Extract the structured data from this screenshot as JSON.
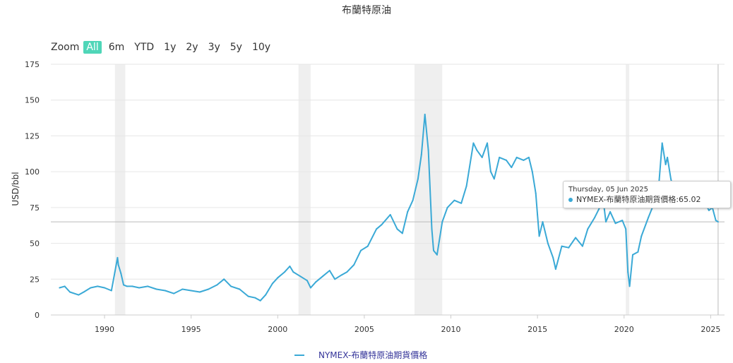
{
  "title": "布蘭特原油",
  "zoom": {
    "label": "Zoom",
    "buttons": [
      "All",
      "6m",
      "YTD",
      "1y",
      "2y",
      "3y",
      "5y",
      "10y"
    ],
    "active": "All"
  },
  "colors": {
    "series": "#3aa9d6",
    "recession": "#efefef",
    "zoom_active": "#4fd6b8",
    "grid": "#e6e6e6"
  },
  "tooltip": {
    "date": "Thursday, 05 Jun 2025",
    "series_label": "NYMEX-布蘭特原油期貨價格",
    "value": "65.02",
    "text": "NYMEX-布蘭特原油期貨價格:65.02"
  },
  "legend": {
    "label": "NYMEX-布蘭特原油期貨價格"
  },
  "chart_data": {
    "type": "line",
    "title": "布蘭特原油",
    "xlabel": "",
    "ylabel": "USD/bbl",
    "xlim": [
      1986.9,
      2025.8
    ],
    "ylim": [
      0,
      175
    ],
    "x_ticks": [
      1990,
      1995,
      2000,
      2005,
      2010,
      2015,
      2020,
      2025
    ],
    "y_ticks": [
      0,
      25,
      50,
      75,
      100,
      125,
      150,
      175
    ],
    "grid": true,
    "legend_position": "bottom-center",
    "recession_bands": [
      [
        1990.6,
        1991.2
      ],
      [
        2001.2,
        2001.9
      ],
      [
        2007.9,
        2009.5
      ],
      [
        2020.1,
        2020.3
      ]
    ],
    "crosshair": {
      "x": 2025.43,
      "y": 65.02
    },
    "series": [
      {
        "name": "NYMEX-布蘭特原油期貨價格",
        "x": [
          1987.4,
          1987.7,
          1988.0,
          1988.5,
          1988.8,
          1989.2,
          1989.6,
          1990.0,
          1990.4,
          1990.6,
          1990.75,
          1990.8,
          1990.95,
          1991.1,
          1991.3,
          1991.6,
          1992.0,
          1992.5,
          1993.0,
          1993.5,
          1994.0,
          1994.5,
          1995.0,
          1995.5,
          1996.0,
          1996.5,
          1996.9,
          1997.3,
          1997.8,
          1998.3,
          1998.7,
          1999.0,
          1999.3,
          1999.7,
          2000.0,
          2000.4,
          2000.7,
          2000.9,
          2001.3,
          2001.7,
          2001.9,
          2002.2,
          2002.6,
          2003.0,
          2003.3,
          2003.7,
          2004.0,
          2004.4,
          2004.8,
          2005.2,
          2005.7,
          2006.0,
          2006.5,
          2006.9,
          2007.2,
          2007.5,
          2007.8,
          2008.1,
          2008.3,
          2008.5,
          2008.7,
          2008.9,
          2009.0,
          2009.2,
          2009.5,
          2009.8,
          2010.2,
          2010.6,
          2010.9,
          2011.1,
          2011.3,
          2011.5,
          2011.8,
          2012.1,
          2012.3,
          2012.5,
          2012.8,
          2013.2,
          2013.5,
          2013.8,
          2014.2,
          2014.5,
          2014.7,
          2014.9,
          2015.0,
          2015.1,
          2015.3,
          2015.6,
          2015.9,
          2016.05,
          2016.4,
          2016.8,
          2017.2,
          2017.6,
          2017.9,
          2018.3,
          2018.8,
          2018.95,
          2019.2,
          2019.5,
          2019.9,
          2020.1,
          2020.22,
          2020.32,
          2020.5,
          2020.8,
          2021.0,
          2021.4,
          2021.8,
          2022.0,
          2022.2,
          2022.4,
          2022.5,
          2022.7,
          2022.9,
          2023.2,
          2023.5,
          2023.8,
          2024.0,
          2024.3,
          2024.6,
          2024.9,
          2025.1,
          2025.3,
          2025.43
        ],
        "y": [
          19,
          20,
          16,
          14,
          16,
          19,
          20,
          19,
          17,
          30,
          40,
          35,
          29,
          21,
          20,
          20,
          19,
          20,
          18,
          17,
          15,
          18,
          17,
          16,
          18,
          21,
          25,
          20,
          18,
          13,
          12,
          10,
          14,
          22,
          26,
          30,
          34,
          30,
          27,
          24,
          19,
          23,
          27,
          31,
          25,
          28,
          30,
          35,
          45,
          48,
          60,
          63,
          70,
          60,
          57,
          72,
          80,
          95,
          112,
          140,
          115,
          60,
          45,
          42,
          65,
          75,
          80,
          78,
          90,
          105,
          120,
          115,
          110,
          120,
          100,
          95,
          110,
          108,
          103,
          110,
          108,
          110,
          100,
          85,
          70,
          55,
          65,
          50,
          40,
          32,
          48,
          47,
          54,
          48,
          60,
          68,
          80,
          65,
          72,
          64,
          66,
          60,
          30,
          20,
          42,
          44,
          55,
          68,
          80,
          90,
          120,
          105,
          110,
          95,
          85,
          82,
          75,
          90,
          78,
          85,
          80,
          73,
          75,
          66,
          65.02
        ]
      }
    ]
  }
}
